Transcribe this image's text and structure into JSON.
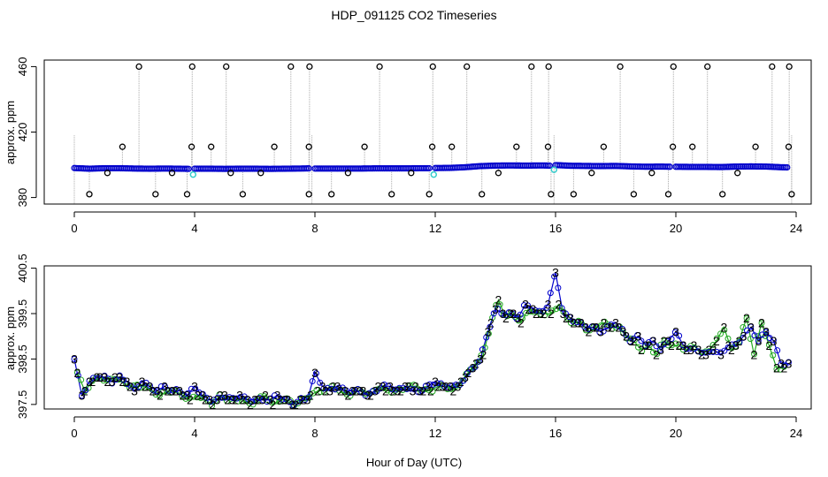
{
  "chart_data": [
    {
      "type": "scatter",
      "title": "HDP_091125  CO2 Timeseries",
      "xlabel": "",
      "ylabel": "approx. ppm",
      "xlim": [
        -1,
        24.5
      ],
      "ylim": [
        376,
        464
      ],
      "x_ticks": [
        0,
        4,
        8,
        12,
        16,
        20,
        24
      ],
      "x_tick_labels": [
        "0",
        "4",
        "8",
        "12",
        "16",
        "20",
        "24"
      ],
      "y_ticks": [
        380,
        420,
        460
      ],
      "y_tick_labels": [
        "380",
        "420",
        "460"
      ],
      "series": [
        {
          "name": "co2 (blue)",
          "color": "#0000cc",
          "segments": [
            {
              "x": [
                0.0,
                0.5,
                1.0,
                1.5,
                2.0,
                2.5,
                3.0,
                3.5,
                3.8
              ],
              "y": [
                398,
                397.6,
                397.9,
                397.9,
                397.7,
                397.6,
                397.7,
                397.6,
                397.5
              ]
            },
            {
              "x": [
                4.0,
                4.5,
                5.0,
                5.5,
                6.0,
                6.5,
                7.0,
                7.5,
                7.8
              ],
              "y": [
                397.6,
                397.6,
                397.5,
                397.6,
                397.6,
                397.5,
                397.6,
                397.7,
                397.8
              ]
            },
            {
              "x": [
                8.0,
                8.5,
                9.0,
                9.5,
                10.0,
                10.5,
                11.0,
                11.5,
                11.8
              ],
              "y": [
                397.7,
                397.7,
                397.7,
                397.7,
                397.8,
                397.8,
                397.8,
                397.9,
                397.9
              ]
            },
            {
              "x": [
                12.0,
                12.5,
                13.0,
                13.5,
                14.0,
                14.5,
                15.0,
                15.5,
                15.8
              ],
              "y": [
                398.0,
                398.1,
                398.5,
                399.2,
                399.5,
                399.6,
                399.5,
                399.6,
                399.5
              ]
            },
            {
              "x": [
                16.0,
                16.5,
                17.0,
                17.5,
                18.0,
                18.5,
                19.0,
                19.5,
                19.8
              ],
              "y": [
                399.8,
                399.4,
                399.3,
                399.2,
                399.3,
                399.0,
                398.8,
                398.9,
                398.8
              ]
            },
            {
              "x": [
                20.0,
                20.5,
                21.0,
                21.5,
                22.0,
                22.5,
                23.0,
                23.5,
                23.7
              ],
              "y": [
                398.8,
                398.7,
                398.7,
                398.6,
                398.9,
                399.0,
                398.9,
                398.5,
                398.4
              ]
            }
          ]
        },
        {
          "name": "low flags",
          "color": "#000000",
          "x": [
            0.5,
            1.1,
            2.7,
            3.25,
            3.75,
            5.2,
            5.6,
            6.2,
            7.8,
            8.55,
            9.1,
            10.55,
            11.2,
            11.8,
            13.55,
            14.1,
            15.85,
            16.6,
            17.2,
            18.6,
            19.2,
            19.75,
            21.55,
            22.05,
            23.85
          ],
          "y": [
            382,
            395,
            382,
            395,
            382,
            395,
            382,
            395,
            382,
            382,
            395,
            382,
            395,
            382,
            382,
            395,
            382,
            382,
            395,
            382,
            395,
            382,
            382,
            395,
            382
          ]
        },
        {
          "name": "high flags",
          "color": "#000000",
          "x": [
            1.6,
            2.15,
            3.9,
            3.92,
            4.55,
            5.05,
            6.65,
            7.2,
            7.8,
            7.82,
            9.65,
            10.15,
            11.9,
            11.92,
            12.55,
            13.05,
            14.7,
            15.2,
            15.75,
            15.77,
            17.6,
            18.15,
            19.9,
            19.92,
            20.55,
            21.05,
            22.65,
            23.2,
            23.75,
            23.77
          ],
          "y": [
            411,
            460,
            411,
            460,
            411,
            460,
            411,
            460,
            411,
            460,
            411,
            460,
            411,
            460,
            411,
            460,
            411,
            460,
            411,
            460,
            411,
            460,
            411,
            460,
            411,
            460,
            411,
            460,
            411,
            460
          ]
        },
        {
          "name": "cal points",
          "color": "#33cccc",
          "x": [
            3.95,
            11.95,
            15.95
          ],
          "y": [
            394,
            394,
            397
          ]
        }
      ]
    },
    {
      "type": "scatter",
      "title": "",
      "xlabel": "Hour of Day (UTC)",
      "ylabel": "approx. ppm",
      "xlim": [
        -1,
        24.5
      ],
      "ylim": [
        397.4,
        400.55
      ],
      "x_ticks": [
        0,
        4,
        8,
        12,
        16,
        20,
        24
      ],
      "x_tick_labels": [
        "0",
        "4",
        "8",
        "12",
        "16",
        "20",
        "24"
      ],
      "y_ticks": [
        397.5,
        398.5,
        399.5,
        400.5
      ],
      "y_tick_labels": [
        "397.5",
        "398.5",
        "399.5",
        "400.5"
      ],
      "marker_labels": {
        "blue": "3",
        "green": "2"
      },
      "series": [
        {
          "name": "co2",
          "color": "#0000cc",
          "x": [
            0,
            0.25,
            0.5,
            0.75,
            1,
            1.25,
            1.5,
            1.75,
            2,
            2.25,
            2.5,
            2.75,
            3,
            3.25,
            3.5,
            3.75,
            4,
            4.25,
            4.5,
            4.75,
            5,
            5.25,
            5.5,
            5.75,
            6,
            6.25,
            6.5,
            6.75,
            7,
            7.25,
            7.5,
            7.75,
            8,
            8.25,
            8.5,
            8.75,
            9,
            9.25,
            9.5,
            9.75,
            10,
            10.25,
            10.5,
            10.75,
            11,
            11.25,
            11.5,
            11.75,
            12,
            12.25,
            12.5,
            12.75,
            13,
            13.25,
            13.5,
            13.75,
            14,
            14.25,
            14.5,
            14.75,
            15,
            15.25,
            15.5,
            15.75,
            16,
            16.25,
            16.5,
            16.75,
            17,
            17.25,
            17.5,
            17.75,
            18,
            18.25,
            18.5,
            18.75,
            19,
            19.25,
            19.5,
            19.75,
            20,
            20.25,
            20.5,
            20.75,
            21,
            21.25,
            21.5,
            21.75,
            22,
            22.25,
            22.5,
            22.75,
            23,
            23.25,
            23.5,
            23.75
          ],
          "y": [
            398.5,
            397.7,
            398.0,
            398.1,
            398.1,
            398.0,
            398.1,
            398.0,
            397.8,
            398.0,
            397.9,
            397.8,
            397.9,
            397.8,
            397.8,
            397.7,
            397.9,
            397.7,
            397.6,
            397.6,
            397.7,
            397.6,
            397.7,
            397.6,
            397.6,
            397.6,
            397.6,
            397.7,
            397.6,
            397.5,
            397.6,
            397.6,
            398.2,
            397.9,
            397.8,
            397.9,
            397.8,
            397.8,
            397.8,
            397.7,
            397.8,
            397.9,
            397.9,
            397.8,
            397.9,
            397.8,
            397.8,
            397.9,
            398.0,
            397.9,
            397.9,
            397.9,
            398.1,
            398.3,
            398.5,
            399.1,
            399.6,
            399.5,
            399.5,
            399.4,
            399.7,
            399.6,
            399.5,
            399.7,
            400.4,
            399.5,
            399.4,
            399.3,
            399.2,
            399.2,
            399.1,
            399.2,
            399.3,
            399.1,
            398.9,
            399.0,
            398.8,
            398.9,
            398.7,
            398.9,
            399.1,
            398.8,
            398.7,
            398.7,
            398.6,
            398.7,
            398.6,
            398.8,
            398.8,
            399.0,
            399.2,
            398.9,
            399.1,
            398.9,
            398.4,
            398.4
          ]
        },
        {
          "name": "co2 alt",
          "color": "#22aa22",
          "x": [
            0.1,
            0.35,
            0.6,
            0.85,
            1.1,
            1.35,
            1.6,
            1.85,
            2.1,
            2.35,
            2.6,
            2.85,
            3.1,
            3.35,
            3.6,
            3.85,
            4.1,
            4.35,
            4.6,
            4.85,
            5.1,
            5.35,
            5.6,
            5.85,
            6.1,
            6.35,
            6.6,
            6.85,
            7.1,
            7.35,
            7.6,
            7.85,
            8.1,
            8.35,
            8.6,
            8.85,
            9.1,
            9.35,
            9.6,
            9.85,
            10.1,
            10.35,
            10.6,
            10.85,
            11.1,
            11.35,
            11.6,
            11.85,
            12.1,
            12.35,
            12.6,
            12.85,
            13.1,
            13.35,
            13.6,
            13.85,
            14.1,
            14.35,
            14.6,
            14.85,
            15.1,
            15.35,
            15.6,
            15.85,
            16.1,
            16.35,
            16.6,
            16.85,
            17.1,
            17.35,
            17.6,
            17.85,
            18.1,
            18.35,
            18.6,
            18.85,
            19.1,
            19.35,
            19.6,
            19.85,
            20.1,
            20.35,
            20.6,
            20.85,
            21.1,
            21.35,
            21.6,
            21.85,
            22.1,
            22.35,
            22.6,
            22.85,
            23.1,
            23.35,
            23.6
          ],
          "y": [
            398.2,
            397.8,
            398.0,
            398.1,
            398.0,
            398.1,
            398.0,
            397.9,
            397.9,
            397.9,
            397.8,
            397.7,
            397.8,
            397.8,
            397.7,
            397.6,
            397.7,
            397.6,
            397.5,
            397.7,
            397.6,
            397.6,
            397.6,
            397.5,
            397.6,
            397.7,
            397.5,
            397.6,
            397.6,
            397.5,
            397.6,
            397.7,
            397.8,
            397.8,
            397.9,
            397.8,
            397.7,
            397.8,
            397.8,
            397.7,
            397.9,
            397.8,
            397.8,
            397.8,
            397.9,
            397.9,
            397.8,
            397.8,
            397.9,
            397.9,
            397.8,
            398.0,
            398.2,
            398.4,
            398.6,
            399.3,
            399.8,
            399.4,
            399.5,
            399.3,
            399.6,
            399.5,
            399.5,
            399.5,
            399.7,
            399.4,
            399.3,
            399.3,
            399.1,
            399.2,
            399.3,
            399.2,
            399.2,
            399.0,
            398.9,
            398.7,
            398.8,
            398.6,
            398.9,
            398.8,
            398.8,
            398.7,
            398.8,
            398.6,
            398.7,
            398.9,
            399.2,
            398.7,
            398.9,
            399.4,
            398.6,
            399.3,
            398.8,
            398.3,
            398.3
          ]
        }
      ]
    }
  ]
}
